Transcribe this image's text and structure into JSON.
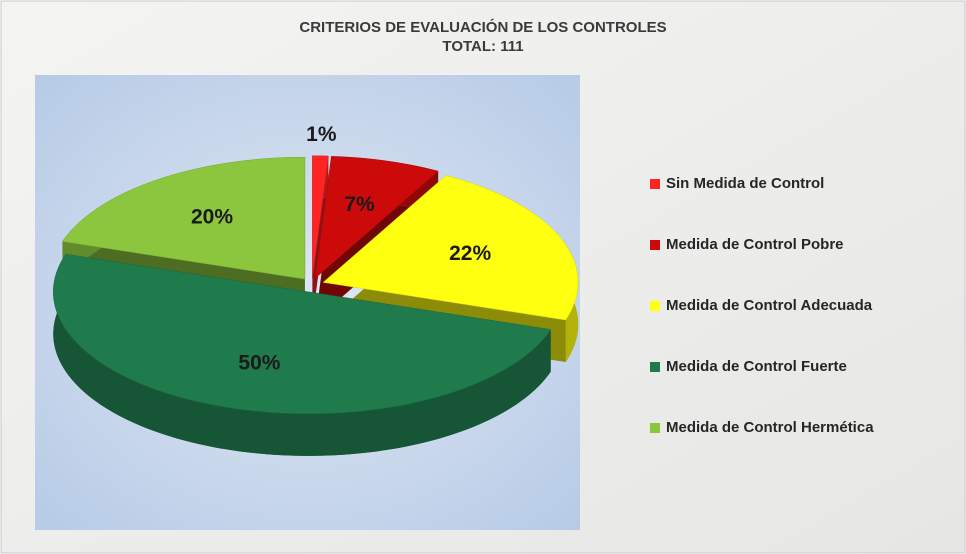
{
  "chart_data": {
    "type": "pie3d",
    "title": "CRITERIOS DE EVALUACIÓN DE LOS CONTROLES",
    "subtitle": "TOTAL: 111",
    "categories": [
      "Sin Medida de Control",
      "Medida de Control  Pobre",
      "Medida de Control Adecuada",
      "Medida de Control Fuerte",
      "Medida de Control Hermética"
    ],
    "values": [
      1,
      7,
      22,
      50,
      20
    ],
    "value_labels": [
      "1%",
      "7%",
      "22%",
      "50%",
      "20%"
    ],
    "colors": [
      "#ff2424",
      "#cc0a0a",
      "#ffff10",
      "#1f7a4c",
      "#8cc63e"
    ],
    "legend": "right"
  }
}
